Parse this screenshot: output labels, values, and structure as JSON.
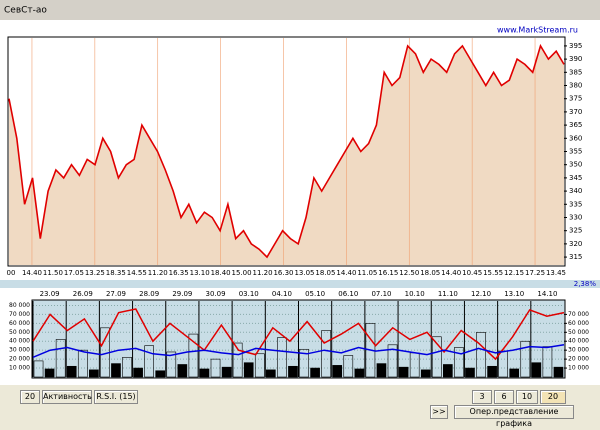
{
  "window": {
    "title": "СевСт-ао",
    "site": "www.MarkStream.ru",
    "percent": "2,38%"
  },
  "price_chart": {
    "type": "area",
    "color": "#e00000",
    "fill": "#f0dac3",
    "x_labels": [
      "00",
      "14.40",
      "11.50",
      "17.05",
      "13.25",
      "18.35",
      "14.55",
      "11.20",
      "16.35",
      "13.10",
      "18.40",
      "15.00",
      "11.20",
      "16.30",
      "13.05",
      "18.05",
      "14.40",
      "11.05",
      "16.15",
      "12.50",
      "18.05",
      "14.40",
      "10.45",
      "15.55",
      "12.15",
      "17.25",
      "13.45"
    ],
    "values": [
      375,
      360,
      335,
      345,
      322,
      340,
      348,
      345,
      350,
      346,
      352,
      350,
      360,
      355,
      345,
      350,
      352,
      365,
      360,
      355,
      348,
      340,
      330,
      335,
      328,
      332,
      330,
      325,
      335,
      322,
      325,
      320,
      318,
      315,
      320,
      325,
      322,
      320,
      330,
      345,
      340,
      345,
      350,
      355,
      360,
      355,
      358,
      365,
      385,
      380,
      383,
      395,
      392,
      385,
      390,
      388,
      385,
      392,
      395,
      390,
      385,
      380,
      385,
      380,
      382,
      390,
      388,
      385,
      395,
      390,
      393,
      388
    ],
    "ylim": [
      312,
      398
    ],
    "yticks": [
      315,
      320,
      325,
      330,
      335,
      340,
      345,
      350,
      355,
      360,
      365,
      370,
      375,
      380,
      385,
      390,
      395
    ]
  },
  "indicator_chart": {
    "type": "line",
    "dates": [
      "23.09",
      "26.09",
      "27.09",
      "28.09",
      "29.09",
      "30.09",
      "03.10",
      "04.10",
      "05.10",
      "06.10",
      "07.10",
      "10.10",
      "11.10",
      "12.10",
      "13.10",
      "14.10"
    ],
    "series": [
      {
        "name": "RSI",
        "color": "#e00000",
        "values": [
          40000,
          70000,
          52000,
          65000,
          35000,
          72000,
          76000,
          40000,
          60000,
          45000,
          30000,
          58000,
          30000,
          25000,
          55000,
          40000,
          62000,
          38000,
          48000,
          60000,
          35000,
          55000,
          42000,
          50000,
          28000,
          52000,
          38000,
          20000,
          45000,
          75000,
          68000,
          72000
        ]
      },
      {
        "name": "Активность",
        "color": "#0000e0",
        "values": [
          22000,
          30000,
          33000,
          28000,
          25000,
          30000,
          32000,
          26000,
          24000,
          28000,
          30000,
          27000,
          25000,
          32000,
          30000,
          28000,
          26000,
          30000,
          27000,
          33000,
          29000,
          31000,
          28000,
          25000,
          30000,
          26000,
          32000,
          27000,
          30000,
          34000,
          33000,
          36000
        ]
      }
    ],
    "bars": [
      18000,
      9000,
      42000,
      12000,
      30000,
      8000,
      55000,
      15000,
      22000,
      10000,
      35000,
      7000,
      28000,
      14000,
      48000,
      9000,
      20000,
      11000,
      38000,
      16000,
      26000,
      8000,
      44000,
      12000,
      31000,
      10000,
      52000,
      13000,
      24000,
      9000,
      60000,
      15000,
      36000,
      11000,
      27000,
      8000,
      45000,
      14000,
      33000,
      10000,
      50000,
      12000,
      29000,
      9000,
      40000,
      16000,
      34000,
      11000
    ],
    "ylim": [
      0,
      85000
    ],
    "yticks": [
      {
        "value": 10000,
        "label": "10 000"
      },
      {
        "value": 20000,
        "label": "20 000"
      },
      {
        "value": 30000,
        "label": "30 000"
      },
      {
        "value": 40000,
        "label": "40 000"
      },
      {
        "value": 50000,
        "label": "50 000"
      },
      {
        "value": 60000,
        "label": "60 000"
      },
      {
        "value": 70000,
        "label": "70 000"
      },
      {
        "value": 80000,
        "label": "80 000"
      }
    ],
    "y2lim": [
      0,
      85000
    ],
    "y2ticks": [
      {
        "value": 10000,
        "label": "10 000"
      },
      {
        "value": 20000,
        "label": "20 000"
      },
      {
        "value": 30000,
        "label": "30 000"
      },
      {
        "value": 40000,
        "label": "40 000"
      },
      {
        "value": 50000,
        "label": "50 000"
      },
      {
        "value": 60000,
        "label": "60 000"
      },
      {
        "value": 70000,
        "label": "70 000"
      }
    ]
  },
  "buttons": {
    "period": "20",
    "activity": "Активность",
    "rsi": "R.S.I.  (15)",
    "d3": "3 дн.",
    "d6": "6 дн.",
    "d10": "10 дн",
    "d20": "20 дн.",
    "next": ">>",
    "mode": "Опер.представление графика"
  }
}
